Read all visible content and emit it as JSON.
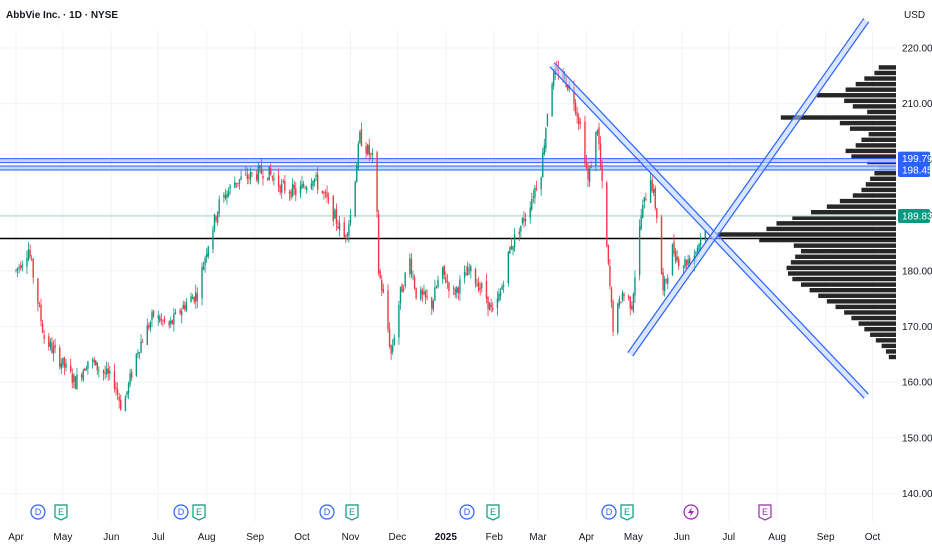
{
  "header": {
    "symbol_title": "AbbVie Inc. · 1D · NYSE",
    "currency": "USD"
  },
  "colors": {
    "up": "#089981",
    "down": "#f23645",
    "grid": "#f0f3fa",
    "tag_blue": "#2962ff",
    "tag_green": "#089981",
    "volume_profile": "#262626",
    "trendline": "#2962ff",
    "support_line": "#000000",
    "dividend_icon": "#2962ff",
    "earnings_icon": "#089981",
    "split_icon": "#9c27b0"
  },
  "chart_data": {
    "type": "candlestick",
    "y_ticks": [
      "220.00",
      "210.00",
      "200.00",
      "190.00",
      "180.00",
      "170.00",
      "160.00",
      "150.00",
      "140.00"
    ],
    "ylim": [
      137,
      222
    ],
    "x_ticks": [
      {
        "label": "Apr",
        "day": 0
      },
      {
        "label": "May",
        "day": 30
      },
      {
        "label": "Jun",
        "day": 61
      },
      {
        "label": "Jul",
        "day": 91
      },
      {
        "label": "Aug",
        "day": 122
      },
      {
        "label": "Sep",
        "day": 153
      },
      {
        "label": "Oct",
        "day": 183
      },
      {
        "label": "Nov",
        "day": 214
      },
      {
        "label": "Dec",
        "day": 244
      },
      {
        "label": "2025",
        "day": 275,
        "bold": true
      },
      {
        "label": "Feb",
        "day": 306
      },
      {
        "label": "Mar",
        "day": 334
      },
      {
        "label": "Apr",
        "day": 365
      },
      {
        "label": "May",
        "day": 395
      },
      {
        "label": "Jun",
        "day": 426
      },
      {
        "label": "Jul",
        "day": 456
      },
      {
        "label": "Aug",
        "day": 487
      },
      {
        "label": "Sep",
        "day": 518
      },
      {
        "label": "Oct",
        "day": 548
      }
    ],
    "price_tags": [
      {
        "label": "199.79",
        "value": 199.79,
        "color": "#2962ff"
      },
      {
        "label": "198.45",
        "value": 198.45,
        "color": "#2962ff"
      },
      {
        "label": "189.83",
        "value": 189.83,
        "color": "#089981"
      }
    ],
    "anchors": [
      [
        0,
        180
      ],
      [
        8,
        184
      ],
      [
        18,
        168
      ],
      [
        28,
        164
      ],
      [
        38,
        160
      ],
      [
        46,
        164
      ],
      [
        55,
        162
      ],
      [
        63,
        160
      ],
      [
        68,
        155
      ],
      [
        78,
        166
      ],
      [
        88,
        172
      ],
      [
        98,
        170
      ],
      [
        108,
        174
      ],
      [
        116,
        176
      ],
      [
        122,
        184
      ],
      [
        130,
        192
      ],
      [
        140,
        196
      ],
      [
        150,
        197
      ],
      [
        160,
        198
      ],
      [
        170,
        195
      ],
      [
        180,
        194
      ],
      [
        190,
        197
      ],
      [
        200,
        192
      ],
      [
        210,
        186
      ],
      [
        214,
        190
      ],
      [
        220,
        204
      ],
      [
        230,
        199
      ],
      [
        232,
        180
      ],
      [
        236,
        174
      ],
      [
        240,
        165
      ],
      [
        246,
        176
      ],
      [
        252,
        182
      ],
      [
        256,
        176
      ],
      [
        266,
        174
      ],
      [
        272,
        180
      ],
      [
        280,
        176
      ],
      [
        290,
        180
      ],
      [
        300,
        176
      ],
      [
        305,
        172
      ],
      [
        310,
        176
      ],
      [
        316,
        184
      ],
      [
        326,
        190
      ],
      [
        336,
        198
      ],
      [
        342,
        214
      ],
      [
        348,
        216
      ],
      [
        356,
        212
      ],
      [
        362,
        205
      ],
      [
        366,
        196
      ],
      [
        372,
        206
      ],
      [
        378,
        184
      ],
      [
        382,
        170
      ],
      [
        388,
        176
      ],
      [
        394,
        174
      ],
      [
        400,
        190
      ],
      [
        406,
        197
      ],
      [
        410,
        190
      ],
      [
        414,
        176
      ],
      [
        420,
        184
      ],
      [
        426,
        181
      ],
      [
        434,
        183
      ],
      [
        441,
        188
      ]
    ],
    "volume_profile": {
      "levels_from": 164.5,
      "level_step": 1,
      "lengths": [
        10,
        14,
        20,
        28,
        36,
        44,
        52,
        62,
        72,
        84,
        96,
        108,
        120,
        132,
        144,
        150,
        152,
        146,
        140,
        132,
        142,
        190,
        248,
        180,
        166,
        144,
        118,
        96,
        78,
        60,
        48,
        42,
        36,
        30,
        24,
        40,
        62,
        70,
        56,
        48,
        38,
        64,
        78,
        160,
        40,
        60,
        72,
        110,
        70,
        56,
        44,
        30,
        24
      ]
    },
    "horizontal_lines": [
      {
        "value": 199.79,
        "style": "blue-band"
      },
      {
        "value": 198.45,
        "style": "blue-band"
      },
      {
        "value": 189.83,
        "style": "green-thin"
      },
      {
        "value": 185.8,
        "style": "black"
      }
    ],
    "trend_channels": [
      {
        "from": [
          343,
          217
        ],
        "to": [
          544,
          157.5
        ],
        "name": "descending"
      },
      {
        "from": [
          393,
          165
        ],
        "to": [
          544,
          225
        ],
        "name": "ascending"
      }
    ],
    "events": [
      {
        "type": "D",
        "day": 34
      },
      {
        "type": "E",
        "day": 46
      },
      {
        "type": "D",
        "day": 164
      },
      {
        "type": "E",
        "day": 175
      },
      {
        "type": "D",
        "day": 296
      },
      {
        "type": "E",
        "day": 321
      },
      {
        "type": "D",
        "day": 422
      },
      {
        "type": "E",
        "day": 448
      },
      {
        "type": "D",
        "day": 548
      },
      {
        "type": "E",
        "day": 565
      },
      {
        "type": "S",
        "day": 626
      },
      {
        "type": "E",
        "day": 692
      }
    ]
  }
}
